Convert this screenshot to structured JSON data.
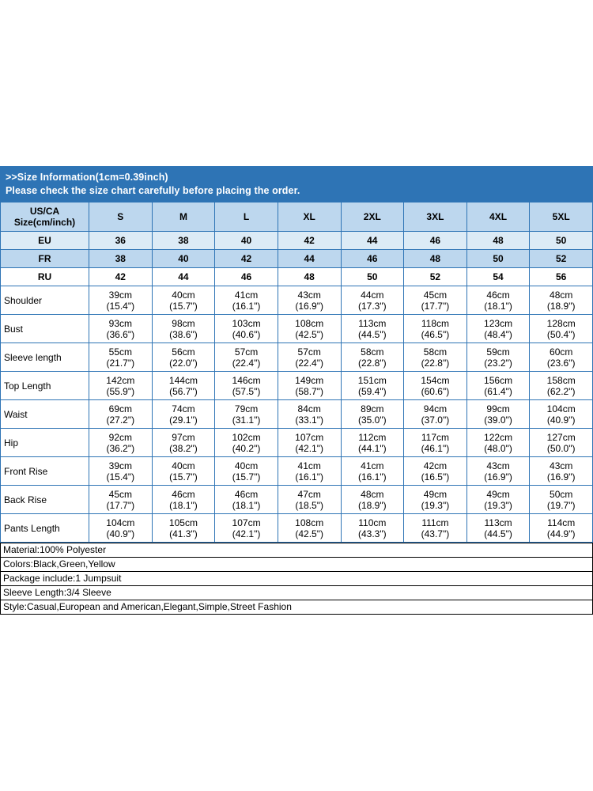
{
  "banner": {
    "line1": ">>Size Information(1cm=0.39inch)",
    "line2": "Please check the size chart carefully before placing the order.",
    "bg_color": "#2e74b5",
    "text_color": "#ffffff"
  },
  "colors": {
    "table_border": "#2e74b5",
    "header_row_bg": "#bdd7ee",
    "header_row_alt_bg": "#dcebf6",
    "info_box_border": "#000000"
  },
  "size_table": {
    "corner": {
      "line1": "US/CA",
      "line2": "Size(cm/inch)"
    },
    "sizes": [
      "S",
      "M",
      "L",
      "XL",
      "2XL",
      "3XL",
      "4XL",
      "5XL"
    ],
    "region_rows": [
      {
        "label": "EU",
        "values": [
          "36",
          "38",
          "40",
          "42",
          "44",
          "46",
          "48",
          "50"
        ]
      },
      {
        "label": "FR",
        "values": [
          "38",
          "40",
          "42",
          "44",
          "46",
          "48",
          "50",
          "52"
        ]
      },
      {
        "label": "RU",
        "values": [
          "42",
          "44",
          "46",
          "48",
          "50",
          "52",
          "54",
          "56"
        ]
      }
    ],
    "measurement_rows": [
      {
        "label": "Shoulder",
        "cells": [
          [
            "39cm",
            "(15.4\")"
          ],
          [
            "40cm",
            "(15.7\")"
          ],
          [
            "41cm",
            "(16.1\")"
          ],
          [
            "43cm",
            "(16.9\")"
          ],
          [
            "44cm",
            "(17.3\")"
          ],
          [
            "45cm",
            "(17.7\")"
          ],
          [
            "46cm",
            "(18.1\")"
          ],
          [
            "48cm",
            "(18.9\")"
          ]
        ]
      },
      {
        "label": "Bust",
        "cells": [
          [
            "93cm",
            "(36.6\")"
          ],
          [
            "98cm",
            "(38.6\")"
          ],
          [
            "103cm",
            "(40.6\")"
          ],
          [
            "108cm",
            "(42.5\")"
          ],
          [
            "113cm",
            "(44.5\")"
          ],
          [
            "118cm",
            "(46.5\")"
          ],
          [
            "123cm",
            "(48.4\")"
          ],
          [
            "128cm",
            "(50.4\")"
          ]
        ]
      },
      {
        "label": "Sleeve length",
        "cells": [
          [
            "55cm",
            "(21.7\")"
          ],
          [
            "56cm",
            "(22.0\")"
          ],
          [
            "57cm",
            "(22.4\")"
          ],
          [
            "57cm",
            "(22.4\")"
          ],
          [
            "58cm",
            "(22.8\")"
          ],
          [
            "58cm",
            "(22.8\")"
          ],
          [
            "59cm",
            "(23.2\")"
          ],
          [
            "60cm",
            "(23.6\")"
          ]
        ]
      },
      {
        "label": "Top Length",
        "cells": [
          [
            "142cm",
            "(55.9\")"
          ],
          [
            "144cm",
            "(56.7\")"
          ],
          [
            "146cm",
            "(57.5\")"
          ],
          [
            "149cm",
            "(58.7\")"
          ],
          [
            "151cm",
            "(59.4\")"
          ],
          [
            "154cm",
            "(60.6\")"
          ],
          [
            "156cm",
            "(61.4\")"
          ],
          [
            "158cm",
            "(62.2\")"
          ]
        ]
      },
      {
        "label": "Waist",
        "cells": [
          [
            "69cm",
            "(27.2\")"
          ],
          [
            "74cm",
            "(29.1\")"
          ],
          [
            "79cm",
            "(31.1\")"
          ],
          [
            "84cm",
            "(33.1\")"
          ],
          [
            "89cm",
            "(35.0\")"
          ],
          [
            "94cm",
            "(37.0\")"
          ],
          [
            "99cm",
            "(39.0\")"
          ],
          [
            "104cm",
            "(40.9\")"
          ]
        ]
      },
      {
        "label": "Hip",
        "cells": [
          [
            "92cm",
            "(36.2\")"
          ],
          [
            "97cm",
            "(38.2\")"
          ],
          [
            "102cm",
            "(40.2\")"
          ],
          [
            "107cm",
            "(42.1\")"
          ],
          [
            "112cm",
            "(44.1\")"
          ],
          [
            "117cm",
            "(46.1\")"
          ],
          [
            "122cm",
            "(48.0\")"
          ],
          [
            "127cm",
            "(50.0\")"
          ]
        ]
      },
      {
        "label": "Front Rise",
        "cells": [
          [
            "39cm",
            "(15.4\")"
          ],
          [
            "40cm",
            "(15.7\")"
          ],
          [
            "40cm",
            "(15.7\")"
          ],
          [
            "41cm",
            "(16.1\")"
          ],
          [
            "41cm",
            "(16.1\")"
          ],
          [
            "42cm",
            "(16.5\")"
          ],
          [
            "43cm",
            "(16.9\")"
          ],
          [
            "43cm",
            "(16.9\")"
          ]
        ]
      },
      {
        "label": "Back Rise",
        "cells": [
          [
            "45cm",
            "(17.7\")"
          ],
          [
            "46cm",
            "(18.1\")"
          ],
          [
            "46cm",
            "(18.1\")"
          ],
          [
            "47cm",
            "(18.5\")"
          ],
          [
            "48cm",
            "(18.9\")"
          ],
          [
            "49cm",
            "(19.3\")"
          ],
          [
            "49cm",
            "(19.3\")"
          ],
          [
            "50cm",
            "(19.7\")"
          ]
        ]
      },
      {
        "label": "Pants Length",
        "cells": [
          [
            "104cm",
            "(40.9\")"
          ],
          [
            "105cm",
            "(41.3\")"
          ],
          [
            "107cm",
            "(42.1\")"
          ],
          [
            "108cm",
            "(42.5\")"
          ],
          [
            "110cm",
            "(43.3\")"
          ],
          [
            "111cm",
            "(43.7\")"
          ],
          [
            "113cm",
            "(44.5\")"
          ],
          [
            "114cm",
            "(44.9\")"
          ]
        ]
      }
    ]
  },
  "product_info": {
    "lines": [
      "Material:100% Polyester",
      "Colors:Black,Green,Yellow",
      "Package include:1 Jumpsuit",
      "Sleeve Length:3/4 Sleeve",
      "Style:Casual,European and American,Elegant,Simple,Street Fashion"
    ]
  }
}
